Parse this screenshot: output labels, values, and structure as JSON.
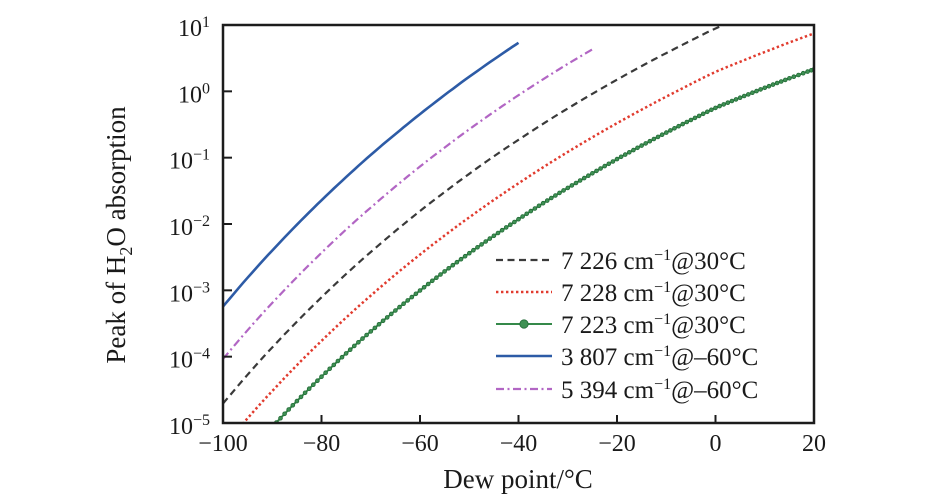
{
  "chart_data": {
    "type": "line",
    "title": "",
    "xlabel": "Dew point/°C",
    "ylabel_pre": "Peak of H",
    "ylabel_sub": "2",
    "ylabel_post": "O absorption",
    "grid": false,
    "legend_position": "inside lower right",
    "axis_color": "#1c1c1c",
    "x_axis": {
      "min": -100,
      "max": 20,
      "ticks": [
        -100,
        -80,
        -60,
        -40,
        -20,
        0,
        20
      ]
    },
    "y_axis": {
      "scale": "log10",
      "min_exp": -5,
      "max_exp": 1,
      "tick_exponents": [
        1,
        0,
        -1,
        -2,
        -3,
        -4,
        -5
      ]
    },
    "series": [
      {
        "id": "line-7226",
        "label_pre": "7 226 cm",
        "label_sup": "−1",
        "label_post": "@30°C",
        "color": "#3a3a3a",
        "line_style": "dashed",
        "line_width": 2.2,
        "marker": "none",
        "x": [
          -100,
          -95,
          -90,
          -85,
          -80,
          -75,
          -70,
          -65,
          -60,
          -55,
          -50,
          -45,
          -40,
          -35,
          -30,
          -25,
          -20,
          -15,
          -10,
          -5,
          0,
          5
        ],
        "y": [
          1.97e-05,
          5.35e-05,
          0.000138,
          0.000337,
          0.000786,
          0.00176,
          0.00378,
          0.00783,
          0.0157,
          0.0303,
          0.0572,
          0.105,
          0.186,
          0.324,
          0.552,
          0.917,
          1.5,
          2.4,
          3.77,
          5.83,
          8.86,
          12.6
        ]
      },
      {
        "id": "line-7228",
        "label_pre": "7 228 cm",
        "label_sup": "−1",
        "label_post": "@30°C",
        "color": "#e13b2e",
        "line_style": "dotted",
        "line_width": 2.5,
        "marker": "none",
        "x": [
          -100,
          -95,
          -90,
          -85,
          -80,
          -75,
          -70,
          -65,
          -60,
          -55,
          -50,
          -45,
          -40,
          -35,
          -30,
          -25,
          -20,
          -15,
          -10,
          -5,
          0,
          5,
          10,
          15,
          20
        ],
        "y": [
          4.35e-06,
          1.18e-05,
          3.04e-05,
          7.44e-05,
          0.000173,
          0.000388,
          0.000834,
          0.00173,
          0.00346,
          0.0067,
          0.0126,
          0.0231,
          0.0411,
          0.0715,
          0.122,
          0.203,
          0.331,
          0.529,
          0.832,
          1.29,
          1.96,
          2.79,
          3.92,
          5.45,
          7.47
        ]
      },
      {
        "id": "line-7223",
        "label_pre": "7 223 cm",
        "label_sup": "−1",
        "label_post": "@30°C",
        "color": "#35894a",
        "line_style": "solid",
        "line_width": 2.0,
        "marker": "circle",
        "marker_fill": "#3f9154",
        "marker_edge": "#236b37",
        "x": [
          -95,
          -90,
          -85,
          -80,
          -75,
          -70,
          -65,
          -60,
          -55,
          -50,
          -45,
          -40,
          -35,
          -30,
          -25,
          -20,
          -15,
          -10,
          -5,
          0,
          5,
          10,
          15,
          20
        ],
        "y": [
          3.4e-06,
          8.73e-06,
          2.14e-05,
          4.99e-05,
          0.000112,
          0.00024,
          0.000497,
          0.000994,
          0.00193,
          0.00363,
          0.00664,
          0.0118,
          0.0206,
          0.035,
          0.0582,
          0.095,
          0.152,
          0.239,
          0.37,
          0.562,
          0.802,
          1.13,
          1.57,
          2.15
        ]
      },
      {
        "id": "line-3807",
        "label_pre": "3 807 cm",
        "label_sup": "−1",
        "label_post": "@–60°C",
        "color": "#2d5ba6",
        "line_style": "solid",
        "line_width": 2.6,
        "marker": "none",
        "x": [
          -100,
          -95,
          -90,
          -85,
          -80,
          -75,
          -70,
          -65,
          -60,
          -55,
          -50,
          -45,
          -40
        ],
        "y": [
          0.000571,
          0.00155,
          0.00399,
          0.00976,
          0.0228,
          0.051,
          0.11,
          0.227,
          0.454,
          0.879,
          1.66,
          3.03,
          5.4
        ]
      },
      {
        "id": "line-5394",
        "label_pre": "5 394 cm",
        "label_sup": "−1",
        "label_post": "@–60°C",
        "color": "#b266c4",
        "line_style": "dashdot",
        "line_width": 2.2,
        "marker": "none",
        "x": [
          -100,
          -95,
          -90,
          -85,
          -80,
          -75,
          -70,
          -65,
          -60,
          -55,
          -50,
          -45,
          -40,
          -35,
          -30,
          -25
        ],
        "y": [
          9.25e-05,
          0.000251,
          0.000646,
          0.00158,
          0.00368,
          0.00825,
          0.0177,
          0.0367,
          0.0735,
          0.142,
          0.268,
          0.49,
          0.874,
          1.52,
          2.59,
          4.3
        ]
      }
    ]
  }
}
